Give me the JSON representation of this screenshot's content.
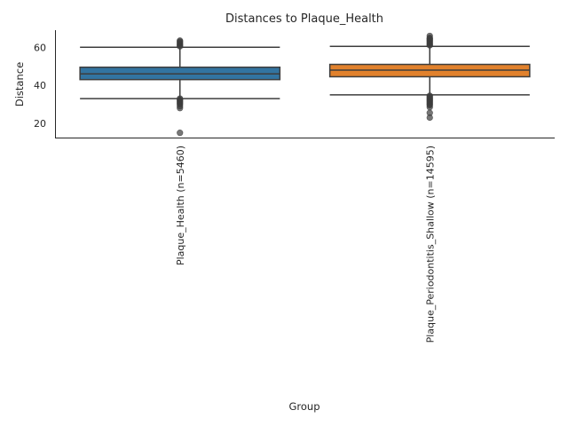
{
  "chart_data": {
    "type": "box",
    "title": "Distances to Plaque_Health",
    "xlabel": "Group",
    "ylabel": "Distance",
    "ylim": [
      12.5,
      69
    ],
    "yticks": [
      20,
      40,
      60
    ],
    "grid": false,
    "legend": "none",
    "categories": [
      "Plaque_Health (n=5460)",
      "Plaque_Periodontitis_Shallow (n=14595)"
    ],
    "colors": [
      "#3274a1",
      "#e1812c"
    ],
    "boxes": [
      {
        "category": "Plaque_Health (n=5460)",
        "whisker_low": 33,
        "q1": 43,
        "median": 46,
        "q3": 49.5,
        "whisker_high": 60,
        "outliers": [
          15,
          28,
          29,
          30,
          30.5,
          31,
          31.5,
          32,
          32.5,
          33,
          60.5,
          61,
          61.5,
          62,
          62.5,
          63,
          63.5
        ]
      },
      {
        "category": "Plaque_Periodontitis_Shallow (n=14595)",
        "whisker_low": 35,
        "q1": 44.5,
        "median": 48,
        "q3": 51,
        "whisker_high": 60.5,
        "outliers": [
          23,
          25.5,
          28.5,
          29.5,
          30,
          30.5,
          31,
          31.5,
          32,
          32.5,
          33,
          33.5,
          34,
          34.5,
          61,
          61.5,
          62,
          62.5,
          63,
          63.5,
          64,
          64.5,
          65,
          66
        ]
      }
    ]
  }
}
